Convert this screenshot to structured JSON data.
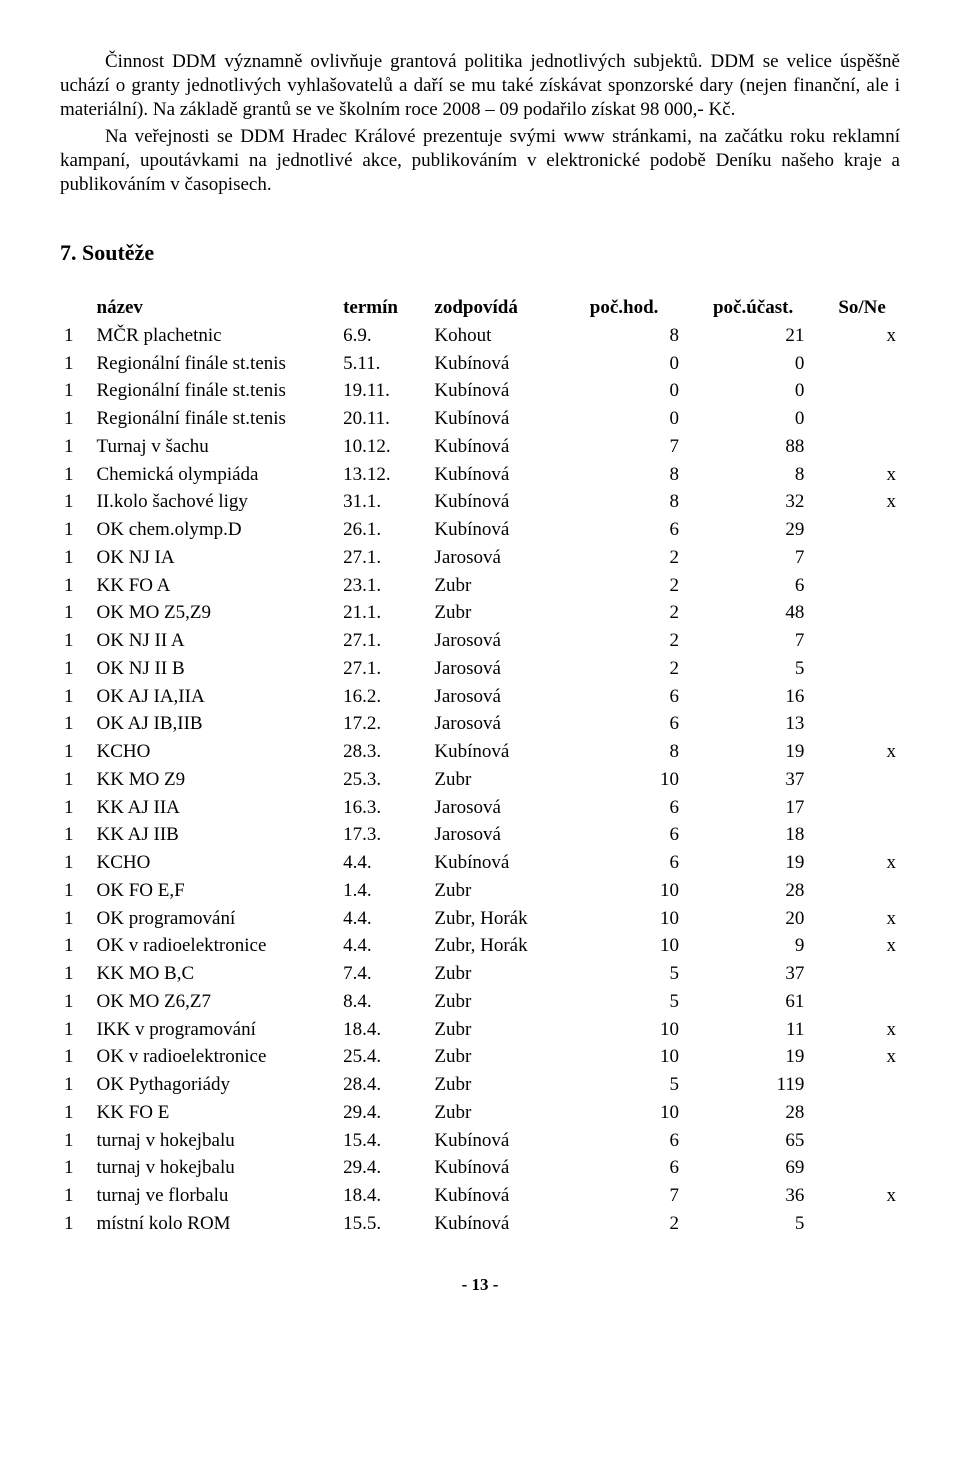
{
  "paragraphs": {
    "p1": "Činnost DDM významně ovlivňuje grantová politika jednotlivých subjektů. DDM se velice úspěšně uchází o granty jednotlivých vyhlašovatelů a daří se mu také získávat sponzorské dary (nejen finanční, ale i materiální). Na základě grantů se ve školním roce 2008 – 09 podařilo získat 98 000,- Kč.",
    "p2": "Na veřejnosti se DDM Hradec Králové prezentuje svými www stránkami, na začátku roku reklamní kampaní, upoutávkami na jednotlivé akce, publikováním v elektronické podobě Deníku našeho kraje a publikováním v časopisech."
  },
  "section": "7. Soutěže",
  "headers": {
    "nazev": "název",
    "termin": "termín",
    "zodpovida": "zodpovídá",
    "pochod": "poč.hod.",
    "pocucast": "poč.účast.",
    "sone": "So/Ne"
  },
  "rows": [
    {
      "n": "1",
      "name": "MČR plachetnic",
      "term": "6.9.",
      "resp": "Kohout",
      "hod": "8",
      "uc": "21",
      "so": "x"
    },
    {
      "n": "1",
      "name": "Regionální finále st.tenis",
      "term": "5.11.",
      "resp": "Kubínová",
      "hod": "0",
      "uc": "0",
      "so": ""
    },
    {
      "n": "1",
      "name": "Regionální finále st.tenis",
      "term": "19.11.",
      "resp": "Kubínová",
      "hod": "0",
      "uc": "0",
      "so": ""
    },
    {
      "n": "1",
      "name": "Regionální finále st.tenis",
      "term": "20.11.",
      "resp": "Kubínová",
      "hod": "0",
      "uc": "0",
      "so": ""
    },
    {
      "n": "1",
      "name": "Turnaj v šachu",
      "term": "10.12.",
      "resp": "Kubínová",
      "hod": "7",
      "uc": "88",
      "so": ""
    },
    {
      "n": "1",
      "name": "Chemická olympiáda",
      "term": "13.12.",
      "resp": "Kubínová",
      "hod": "8",
      "uc": "8",
      "so": "x"
    },
    {
      "n": "1",
      "name": "II.kolo šachové ligy",
      "term": "31.1.",
      "resp": "Kubínová",
      "hod": "8",
      "uc": "32",
      "so": "x"
    },
    {
      "n": "1",
      "name": "OK chem.olymp.D",
      "term": "26.1.",
      "resp": "Kubínová",
      "hod": "6",
      "uc": "29",
      "so": ""
    },
    {
      "n": "1",
      "name": "OK NJ IA",
      "term": "27.1.",
      "resp": "Jarosová",
      "hod": "2",
      "uc": "7",
      "so": ""
    },
    {
      "n": "1",
      "name": "KK FO A",
      "term": "23.1.",
      "resp": "Zubr",
      "hod": "2",
      "uc": "6",
      "so": ""
    },
    {
      "n": "1",
      "name": "OK MO Z5,Z9",
      "term": "21.1.",
      "resp": "Zubr",
      "hod": "2",
      "uc": "48",
      "so": ""
    },
    {
      "n": "1",
      "name": "OK NJ II A",
      "term": "27.1.",
      "resp": "Jarosová",
      "hod": "2",
      "uc": "7",
      "so": ""
    },
    {
      "n": "1",
      "name": "OK NJ II B",
      "term": "27.1.",
      "resp": "Jarosová",
      "hod": "2",
      "uc": "5",
      "so": ""
    },
    {
      "n": "1",
      "name": "OK AJ IA,IIA",
      "term": "16.2.",
      "resp": "Jarosová",
      "hod": "6",
      "uc": "16",
      "so": ""
    },
    {
      "n": "1",
      "name": "OK AJ IB,IIB",
      "term": "17.2.",
      "resp": "Jarosová",
      "hod": "6",
      "uc": "13",
      "so": ""
    },
    {
      "n": "1",
      "name": "KCHO",
      "term": "28.3.",
      "resp": "Kubínová",
      "hod": "8",
      "uc": "19",
      "so": "x"
    },
    {
      "n": "1",
      "name": "KK MO Z9",
      "term": "25.3.",
      "resp": "Zubr",
      "hod": "10",
      "uc": "37",
      "so": ""
    },
    {
      "n": "1",
      "name": "KK AJ IIA",
      "term": "16.3.",
      "resp": "Jarosová",
      "hod": "6",
      "uc": "17",
      "so": ""
    },
    {
      "n": "1",
      "name": "KK AJ IIB",
      "term": "17.3.",
      "resp": "Jarosová",
      "hod": "6",
      "uc": "18",
      "so": ""
    },
    {
      "n": "1",
      "name": "KCHO",
      "term": "4.4.",
      "resp": "Kubínová",
      "hod": "6",
      "uc": "19",
      "so": "x"
    },
    {
      "n": "1",
      "name": "OK FO E,F",
      "term": "1.4.",
      "resp": "Zubr",
      "hod": "10",
      "uc": "28",
      "so": ""
    },
    {
      "n": "1",
      "name": "OK programování",
      "term": "4.4.",
      "resp": "Zubr, Horák",
      "hod": "10",
      "uc": "20",
      "so": "x"
    },
    {
      "n": "1",
      "name": "OK v radioelektronice",
      "term": "4.4.",
      "resp": "Zubr, Horák",
      "hod": "10",
      "uc": "9",
      "so": "x"
    },
    {
      "n": "1",
      "name": "KK MO B,C",
      "term": "7.4.",
      "resp": "Zubr",
      "hod": "5",
      "uc": "37",
      "so": ""
    },
    {
      "n": "1",
      "name": "OK MO Z6,Z7",
      "term": "8.4.",
      "resp": "Zubr",
      "hod": "5",
      "uc": "61",
      "so": ""
    },
    {
      "n": "1",
      "name": "IKK v programování",
      "term": "18.4.",
      "resp": "Zubr",
      "hod": "10",
      "uc": "11",
      "so": "x"
    },
    {
      "n": "1",
      "name": "OK  v radioelektronice",
      "term": "25.4.",
      "resp": "Zubr",
      "hod": "10",
      "uc": "19",
      "so": "x"
    },
    {
      "n": "1",
      "name": "OK Pythagoriády",
      "term": "28.4.",
      "resp": "Zubr",
      "hod": "5",
      "uc": "119",
      "so": ""
    },
    {
      "n": "1",
      "name": "KK FO E",
      "term": "29.4.",
      "resp": "Zubr",
      "hod": "10",
      "uc": "28",
      "so": ""
    },
    {
      "n": "1",
      "name": "turnaj v hokejbalu",
      "term": "15.4.",
      "resp": "Kubínová",
      "hod": "6",
      "uc": "65",
      "so": ""
    },
    {
      "n": "1",
      "name": "turnaj v hokejbalu",
      "term": "29.4.",
      "resp": "Kubínová",
      "hod": "6",
      "uc": "69",
      "so": ""
    },
    {
      "n": "1",
      "name": "turnaj ve florbalu",
      "term": "18.4.",
      "resp": "Kubínová",
      "hod": "7",
      "uc": "36",
      "so": "x"
    },
    {
      "n": "1",
      "name": "místní kolo ROM",
      "term": "15.5.",
      "resp": "Kubínová",
      "hod": "2",
      "uc": "5",
      "so": ""
    }
  ],
  "footer": "- 13 -"
}
